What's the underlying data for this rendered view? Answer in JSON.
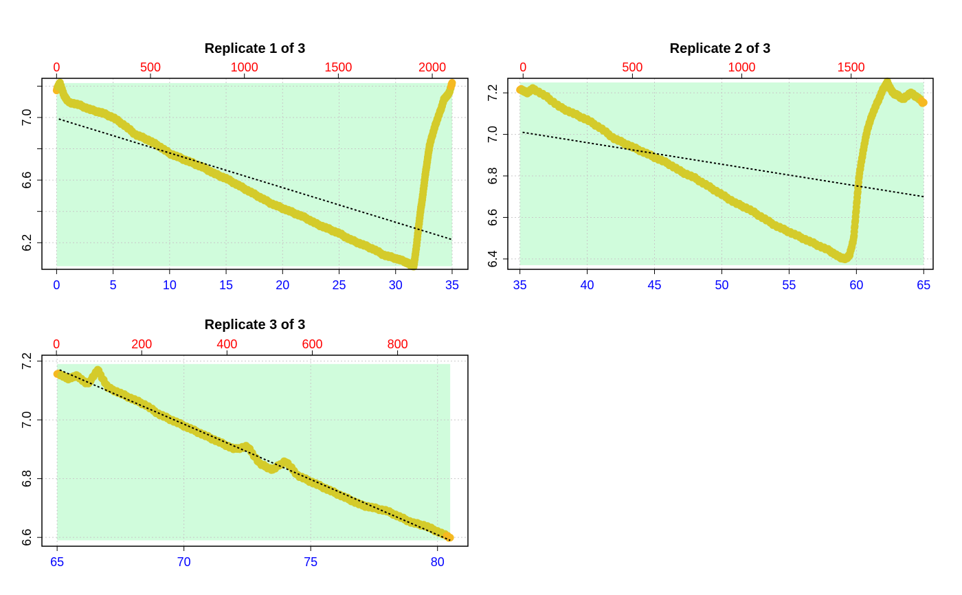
{
  "colors": {
    "top_axis": "#ff0000",
    "bottom_axis": "#0000ff",
    "band": "#d0fcdc",
    "points": "#d4cb2b",
    "points_edge": "#f5b921",
    "trend": "#000000",
    "grid": "#c8c8c8"
  },
  "chart_data": [
    {
      "type": "scatter",
      "title": "Replicate 1 of 3",
      "xlim": [
        -1.3,
        36.4
      ],
      "ylim": [
        6.03,
        7.25
      ],
      "x2lim": [
        -78,
        2190
      ],
      "xticks": [
        0,
        5,
        10,
        15,
        20,
        25,
        30,
        35
      ],
      "xtick_labels": [
        "0",
        "5",
        "10",
        "15",
        "20",
        "25",
        "30",
        "35"
      ],
      "x2ticks": [
        0,
        500,
        1000,
        1500,
        2000
      ],
      "x2tick_labels": [
        "0",
        "500",
        "1000",
        "1500",
        "2000"
      ],
      "yticks": [
        6.2,
        6.6,
        7.0
      ],
      "ytick_labels": [
        "6.2",
        "6.6",
        "7.0"
      ],
      "yminor": [
        6.4,
        6.8,
        7.2
      ],
      "band": {
        "x0": 0,
        "x1": 35,
        "y0": 6.05,
        "y1": 7.22
      },
      "trend": {
        "x": [
          0.2,
          35
        ],
        "y": [
          6.99,
          6.22
        ]
      },
      "series": [
        {
          "x": [
            0,
            0.3,
            0.6,
            1,
            2,
            3,
            4,
            5,
            6,
            7,
            8,
            9,
            10,
            11,
            12,
            13,
            14,
            15,
            16,
            17,
            18,
            19,
            20,
            21,
            22,
            23,
            24,
            25,
            26,
            27,
            28,
            29,
            30,
            30.8,
            31.3,
            31.6,
            31.8,
            32,
            32.2,
            32.4,
            32.6,
            32.8,
            33,
            33.3,
            33.6,
            34,
            34.3,
            34.7,
            35
          ],
          "y": [
            7.18,
            7.22,
            7.15,
            7.1,
            7.08,
            7.05,
            7.03,
            7.0,
            6.95,
            6.89,
            6.86,
            6.82,
            6.77,
            6.74,
            6.71,
            6.68,
            6.64,
            6.61,
            6.57,
            6.53,
            6.49,
            6.45,
            6.42,
            6.39,
            6.36,
            6.32,
            6.29,
            6.26,
            6.22,
            6.19,
            6.16,
            6.12,
            6.1,
            6.08,
            6.06,
            6.05,
            6.15,
            6.28,
            6.4,
            6.5,
            6.62,
            6.72,
            6.82,
            6.9,
            6.97,
            7.05,
            7.12,
            7.15,
            7.22
          ]
        }
      ]
    },
    {
      "type": "scatter",
      "title": "Replicate 2 of 3",
      "xlim": [
        34.1,
        65.7
      ],
      "ylim": [
        6.35,
        7.27
      ],
      "x2lim": [
        -70,
        1875
      ],
      "xticks": [
        35,
        40,
        45,
        50,
        55,
        60,
        65
      ],
      "xtick_labels": [
        "35",
        "40",
        "45",
        "50",
        "55",
        "60",
        "65"
      ],
      "x2ticks": [
        0,
        500,
        1000,
        1500
      ],
      "x2tick_labels": [
        "0",
        "500",
        "1000",
        "1500"
      ],
      "yticks": [
        6.4,
        6.6,
        6.8,
        7.0,
        7.2
      ],
      "ytick_labels": [
        "6.4",
        "6.6",
        "6.8",
        "7.0",
        "7.2"
      ],
      "yminor": [],
      "band": {
        "x0": 35,
        "x1": 65,
        "y0": 6.37,
        "y1": 7.25
      },
      "trend": {
        "x": [
          35.2,
          65
        ],
        "y": [
          7.01,
          6.7
        ]
      },
      "series": [
        {
          "x": [
            35,
            35.5,
            36,
            37,
            38,
            39,
            40,
            41,
            42,
            43,
            44,
            45,
            46,
            47,
            48,
            49,
            50,
            51,
            52,
            53,
            54,
            55,
            56,
            57,
            58,
            58.7,
            59.2,
            59.5,
            59.8,
            60,
            60.2,
            60.5,
            60.8,
            61.2,
            61.6,
            62,
            62.3,
            62.7,
            63,
            63.5,
            64,
            64.5,
            65
          ],
          "y": [
            7.22,
            7.2,
            7.22,
            7.18,
            7.13,
            7.1,
            7.07,
            7.03,
            6.98,
            6.95,
            6.92,
            6.89,
            6.86,
            6.82,
            6.79,
            6.75,
            6.71,
            6.67,
            6.64,
            6.6,
            6.56,
            6.53,
            6.5,
            6.47,
            6.44,
            6.41,
            6.4,
            6.42,
            6.5,
            6.65,
            6.8,
            6.92,
            7.02,
            7.1,
            7.16,
            7.22,
            7.25,
            7.2,
            7.19,
            7.17,
            7.2,
            7.18,
            7.15
          ]
        }
      ]
    },
    {
      "type": "scatter",
      "title": "Replicate 3 of 3",
      "xlim": [
        64.4,
        81.2
      ],
      "ylim": [
        6.57,
        7.22
      ],
      "x2lim": [
        -34,
        965
      ],
      "xticks": [
        65,
        70,
        75,
        80
      ],
      "xtick_labels": [
        "65",
        "70",
        "75",
        "80"
      ],
      "x2ticks": [
        0,
        200,
        400,
        600,
        800
      ],
      "x2tick_labels": [
        "0",
        "200",
        "400",
        "600",
        "800"
      ],
      "yticks": [
        6.6,
        6.8,
        7.0,
        7.2
      ],
      "ytick_labels": [
        "6.6",
        "6.8",
        "7.0",
        "7.2"
      ],
      "yminor": [],
      "band": {
        "x0": 65,
        "x1": 80.5,
        "y0": 6.59,
        "y1": 7.19
      },
      "trend": {
        "x": [
          65.1,
          80.5
        ],
        "y": [
          7.17,
          6.59
        ]
      },
      "series": [
        {
          "x": [
            65,
            65.4,
            65.8,
            66.2,
            66.6,
            67,
            67.5,
            68,
            68.5,
            69,
            69.5,
            70,
            70.5,
            71,
            71.5,
            72,
            72.5,
            73,
            73.5,
            74,
            74.5,
            75,
            75.5,
            76,
            76.5,
            77,
            77.5,
            78,
            78.5,
            79,
            79.5,
            80,
            80.5
          ],
          "y": [
            7.16,
            7.14,
            7.15,
            7.12,
            7.17,
            7.11,
            7.09,
            7.07,
            7.05,
            7.02,
            7.0,
            6.98,
            6.96,
            6.94,
            6.92,
            6.9,
            6.91,
            6.85,
            6.83,
            6.86,
            6.81,
            6.79,
            6.77,
            6.75,
            6.73,
            6.71,
            6.7,
            6.69,
            6.67,
            6.65,
            6.64,
            6.62,
            6.6
          ]
        }
      ]
    }
  ]
}
